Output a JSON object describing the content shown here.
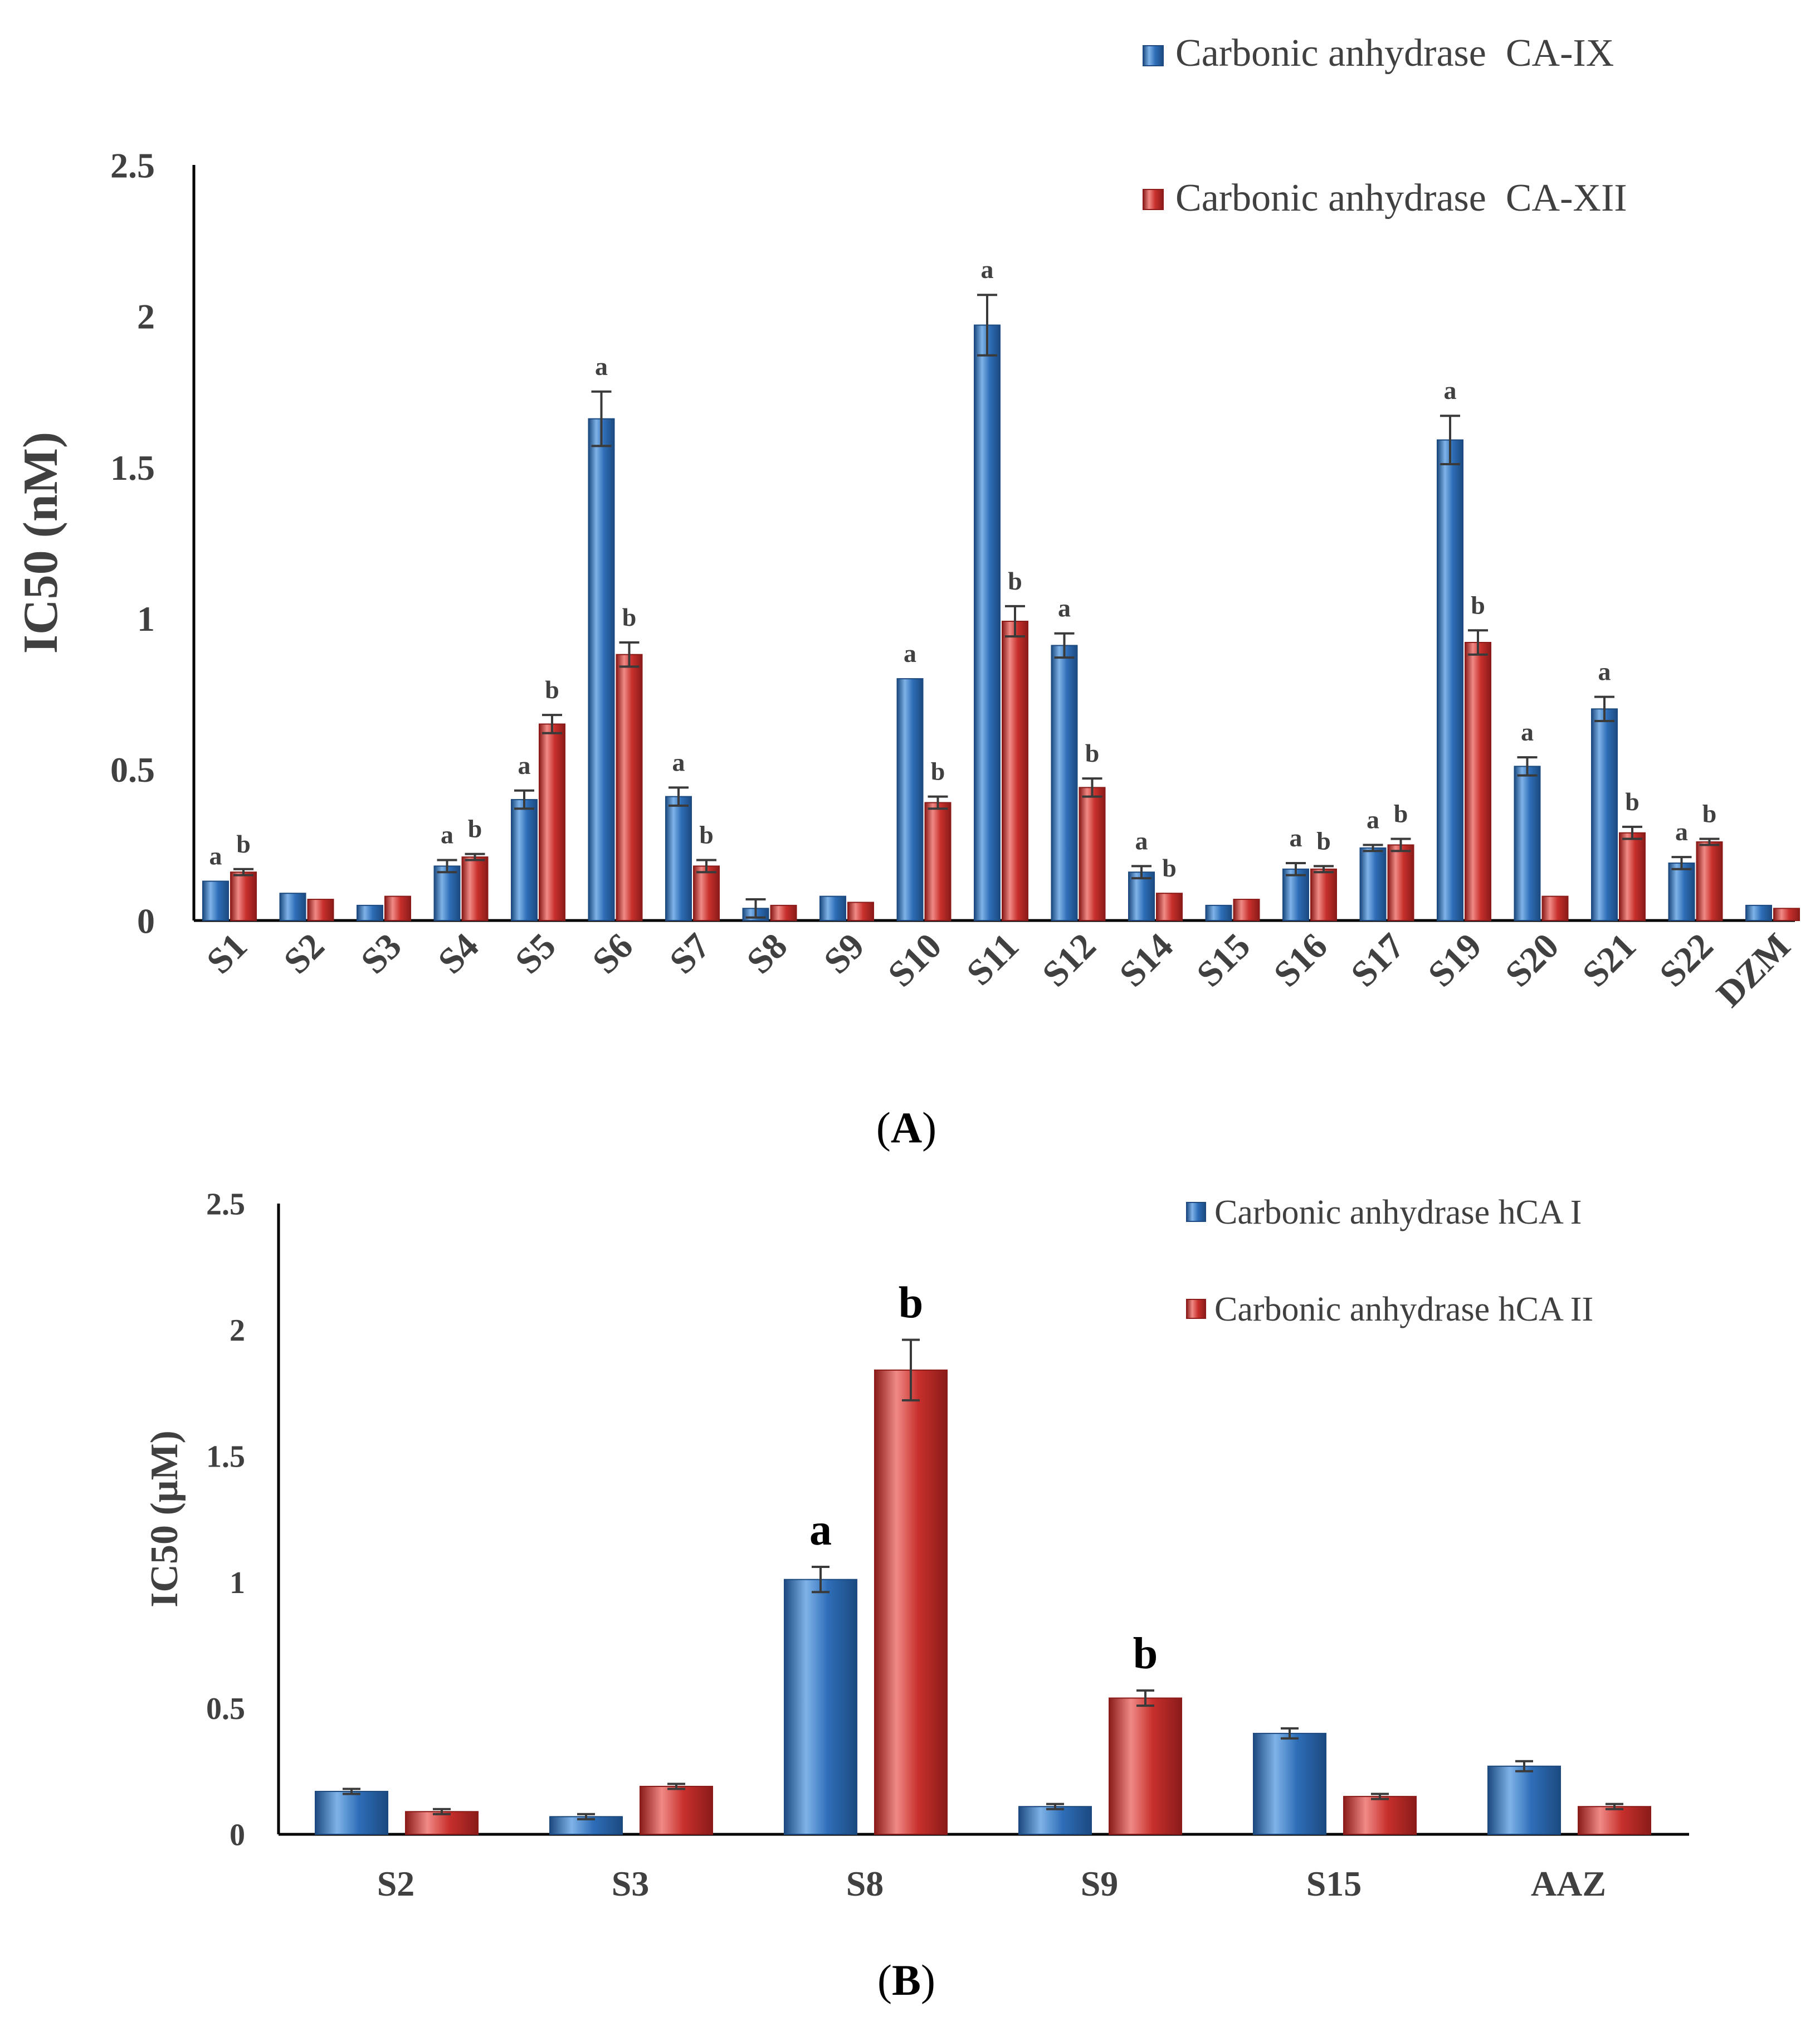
{
  "colors": {
    "series1": "#2e6eb8",
    "series1_dark": "#1c4a80",
    "series1_light": "#7fb3e8",
    "series2": "#c8302c",
    "series2_dark": "#8a1b19",
    "series2_light": "#f08a86"
  },
  "chart_data": [
    {
      "type": "bar",
      "panel_label": "A",
      "ylabel": "IC50 (nM)",
      "ylim": [
        0,
        2.5
      ],
      "yticks": [
        "0",
        "0.5",
        "1",
        "1.5",
        "2",
        "2.5"
      ],
      "ytick_values": [
        0,
        0.5,
        1,
        1.5,
        2,
        2.5
      ],
      "grid": false,
      "legend_position": "top-right",
      "categories": [
        "S1",
        "S2",
        "S3",
        "S4",
        "S5",
        "S6",
        "S7",
        "S8",
        "S9",
        "S10",
        "S11",
        "S12",
        "S14",
        "S15",
        "S16",
        "S17",
        "S19",
        "S20",
        "S21",
        "S22",
        "DZM"
      ],
      "series": [
        {
          "name": "Carbonic anhydrase  CA-IX",
          "values": [
            0.13,
            0.09,
            0.05,
            0.18,
            0.4,
            1.66,
            0.41,
            0.04,
            0.08,
            0.8,
            1.97,
            0.91,
            0.16,
            0.05,
            0.17,
            0.24,
            1.59,
            0.51,
            0.7,
            0.19,
            0.05
          ],
          "errors": [
            0.0,
            0.0,
            0.0,
            0.02,
            0.03,
            0.09,
            0.03,
            0.03,
            0.0,
            0.0,
            0.1,
            0.04,
            0.02,
            0.0,
            0.02,
            0.01,
            0.08,
            0.03,
            0.04,
            0.02,
            0.0
          ],
          "labels": [
            "a",
            "",
            "",
            "a",
            "a",
            "a",
            "a",
            "",
            "",
            "a",
            "a",
            "a",
            "a",
            "",
            "a",
            "a",
            "a",
            "a",
            "a",
            "a",
            ""
          ]
        },
        {
          "name": "Carbonic anhydrase  CA-XII",
          "values": [
            0.16,
            0.07,
            0.08,
            0.21,
            0.65,
            0.88,
            0.18,
            0.05,
            0.06,
            0.39,
            0.99,
            0.44,
            0.09,
            0.07,
            0.17,
            0.25,
            0.92,
            0.08,
            0.29,
            0.26,
            0.04
          ],
          "errors": [
            0.01,
            0.0,
            0.0,
            0.01,
            0.03,
            0.04,
            0.02,
            0.0,
            0.0,
            0.02,
            0.05,
            0.03,
            0.0,
            0.0,
            0.01,
            0.02,
            0.04,
            0.0,
            0.02,
            0.01,
            0.0
          ],
          "labels": [
            "b",
            "",
            "",
            "b",
            "b",
            "b",
            "b",
            "",
            "",
            "b",
            "b",
            "b",
            "b",
            "",
            "b",
            "b",
            "b",
            "",
            "b",
            "b",
            ""
          ]
        }
      ]
    },
    {
      "type": "bar",
      "panel_label": "B",
      "ylabel": "IC50 (μM)",
      "ylim": [
        0,
        2.5
      ],
      "yticks": [
        "0",
        "0.5",
        "1",
        "1.5",
        "2",
        "2.5"
      ],
      "ytick_values": [
        0,
        0.5,
        1,
        1.5,
        2,
        2.5
      ],
      "grid": false,
      "legend_position": "top-right",
      "categories": [
        "S2",
        "S3",
        "S8",
        "S9",
        "S15",
        "AAZ"
      ],
      "series": [
        {
          "name": "Carbonic anhydrase hCA I",
          "values": [
            0.17,
            0.07,
            1.01,
            0.11,
            0.4,
            0.27
          ],
          "errors": [
            0.01,
            0.01,
            0.05,
            0.01,
            0.02,
            0.02
          ],
          "labels": [
            "",
            "",
            "a",
            "",
            "",
            ""
          ]
        },
        {
          "name": "Carbonic anhydrase hCA II",
          "values": [
            0.09,
            0.19,
            1.84,
            0.54,
            0.15,
            0.11
          ],
          "errors": [
            0.01,
            0.01,
            0.12,
            0.03,
            0.01,
            0.01
          ],
          "labels": [
            "",
            "",
            "b",
            "b",
            "",
            ""
          ]
        }
      ]
    }
  ]
}
